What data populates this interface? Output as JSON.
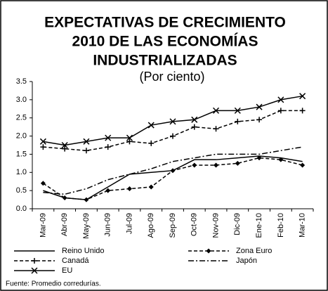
{
  "chart_data": {
    "type": "line",
    "title": [
      "EXPECTATIVAS DE CRECIMIENTO",
      "2010 DE LAS ECONOMÍAS",
      "INDUSTRIALIZADAS"
    ],
    "subtitle": "(Por ciento)",
    "categories": [
      "Mar-09",
      "Abr-09",
      "May-09",
      "Jun-09",
      "Jul-09",
      "Ago-09",
      "Sep-09",
      "Oct-09",
      "Nov-09",
      "Dic-09",
      "Ene-10",
      "Feb-10",
      "Mar-10"
    ],
    "series": [
      {
        "name": "Reino Unido",
        "color": "#000000",
        "dash": "solid",
        "marker": "none",
        "values": [
          0.5,
          0.3,
          0.25,
          0.6,
          0.95,
          1.0,
          1.05,
          1.35,
          1.35,
          1.4,
          1.45,
          1.4,
          1.3
        ]
      },
      {
        "name": "Zona Euro",
        "color": "#000000",
        "dash": "dashed",
        "marker": "diamond",
        "values": [
          0.7,
          0.3,
          0.25,
          0.5,
          0.55,
          0.6,
          1.05,
          1.2,
          1.2,
          1.25,
          1.4,
          1.35,
          1.2
        ]
      },
      {
        "name": "Canadá",
        "color": "#000000",
        "dash": "dashed",
        "marker": "plus",
        "values": [
          1.7,
          1.65,
          1.6,
          1.7,
          1.85,
          1.8,
          2.0,
          2.25,
          2.2,
          2.4,
          2.45,
          2.7,
          2.7
        ]
      },
      {
        "name": "Japón",
        "color": "#000000",
        "dash": "dashdot",
        "marker": "none",
        "values": [
          0.45,
          0.4,
          0.55,
          0.8,
          0.95,
          1.1,
          1.3,
          1.4,
          1.5,
          1.5,
          1.5,
          1.6,
          1.7
        ]
      },
      {
        "name": "EU",
        "color": "#000000",
        "dash": "solid",
        "marker": "x",
        "values": [
          1.85,
          1.75,
          1.85,
          1.95,
          1.95,
          2.3,
          2.4,
          2.45,
          2.7,
          2.7,
          2.8,
          3.0,
          3.1
        ]
      }
    ],
    "ylim": [
      0,
      3.5
    ],
    "yticks": [
      {
        "value": 0,
        "label": "0.0"
      },
      0.5,
      {
        "value": 1,
        "label": "1.0"
      },
      1.5,
      {
        "value": 2,
        "label": "2.0"
      },
      2.5,
      {
        "value": 3,
        "label": "3.0"
      },
      3.5
    ],
    "grid": false,
    "source": "Fuente: Promedio corredurías."
  }
}
